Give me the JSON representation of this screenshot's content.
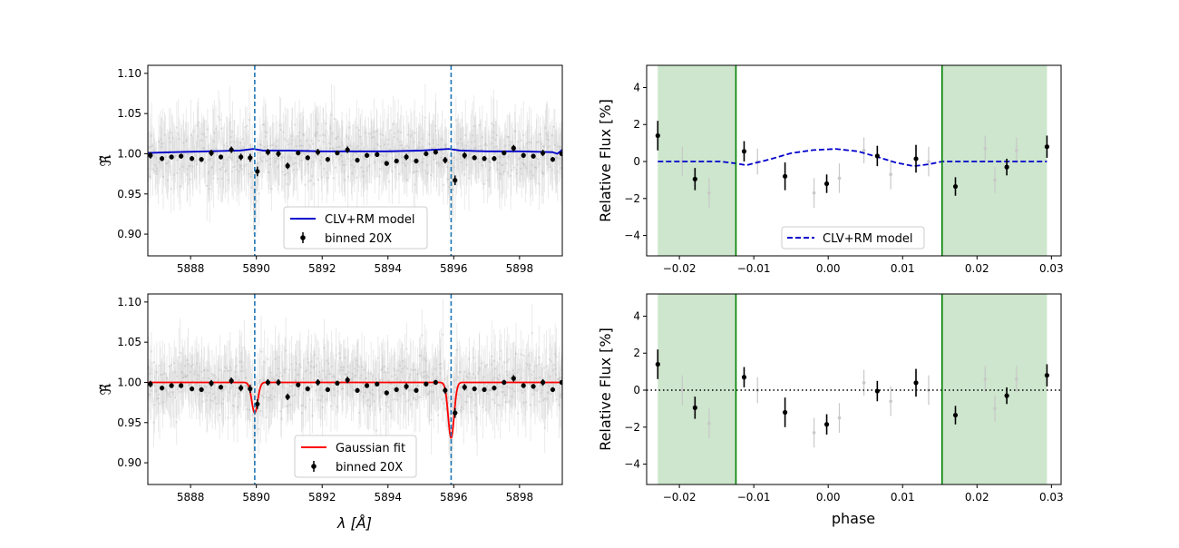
{
  "figure": {
    "background": "#ffffff"
  },
  "chart_data": [
    {
      "id": "spec_top",
      "type": "scatter",
      "x_range": [
        5886.7,
        5899.3
      ],
      "y_range": [
        0.873,
        1.11
      ],
      "xticks": [
        5888,
        5890,
        5892,
        5894,
        5896,
        5898
      ],
      "xtick_labels": [
        "5888",
        "5890",
        "5892",
        "5894",
        "5896",
        "5898"
      ],
      "yticks": [
        0.9,
        0.95,
        1.0,
        1.05,
        1.1
      ],
      "ytick_labels": [
        "0.90",
        "0.95",
        "1.00",
        "1.05",
        "1.10"
      ],
      "xlabel": "",
      "ylabel": "ℜ̃",
      "vlines": [
        5889.95,
        5895.92
      ],
      "vline_color": "#1f77b4",
      "raw_scatter_color": "#b4b4b4",
      "binned": {
        "name": "binned 20X",
        "x": [
          5886.78,
          5887.13,
          5887.42,
          5887.71,
          5888.04,
          5888.33,
          5888.63,
          5888.92,
          5889.24,
          5889.53,
          5889.81,
          5890.03,
          5890.35,
          5890.67,
          5890.95,
          5891.27,
          5891.56,
          5891.87,
          5892.17,
          5892.46,
          5892.77,
          5893.07,
          5893.36,
          5893.67,
          5893.96,
          5894.26,
          5894.56,
          5894.86,
          5895.16,
          5895.45,
          5895.74,
          5896.04,
          5896.33,
          5896.63,
          5896.93,
          5897.23,
          5897.53,
          5897.82,
          5898.12,
          5898.42,
          5898.71,
          5899.01,
          5899.28
        ],
        "y": [
          0.998,
          0.994,
          0.996,
          0.997,
          0.994,
          0.993,
          1.001,
          0.996,
          1.005,
          0.996,
          0.995,
          0.978,
          1.002,
          1.0,
          0.985,
          1.001,
          0.995,
          1.002,
          0.993,
          1.001,
          1.005,
          0.992,
          0.998,
          0.999,
          0.988,
          0.991,
          0.996,
          0.991,
          1.0,
          1.002,
          0.992,
          0.967,
          0.998,
          0.995,
          0.994,
          0.994,
          1.001,
          1.007,
          0.998,
          0.997,
          1.001,
          0.993,
          1.0
        ],
        "yerr": [
          0.004,
          0.003,
          0.003,
          0.003,
          0.003,
          0.003,
          0.004,
          0.003,
          0.004,
          0.004,
          0.005,
          0.006,
          0.004,
          0.004,
          0.004,
          0.003,
          0.003,
          0.004,
          0.003,
          0.003,
          0.004,
          0.003,
          0.003,
          0.003,
          0.003,
          0.003,
          0.004,
          0.003,
          0.003,
          0.003,
          0.004,
          0.006,
          0.004,
          0.003,
          0.003,
          0.003,
          0.003,
          0.004,
          0.003,
          0.003,
          0.004,
          0.003,
          0.003
        ]
      },
      "model": {
        "name": "CLV+RM model",
        "color": "#0000cc",
        "style": "solid",
        "x": [
          5886.7,
          5887.5,
          5888.5,
          5889.5,
          5889.9,
          5890.2,
          5891.0,
          5892.0,
          5893.0,
          5894.0,
          5895.0,
          5895.85,
          5896.2,
          5897.0,
          5898.0,
          5899.0,
          5899.15,
          5899.3
        ],
        "y": [
          1.001,
          1.002,
          1.003,
          1.004,
          1.006,
          1.004,
          1.004,
          1.003,
          1.003,
          1.003,
          1.004,
          1.006,
          1.004,
          1.003,
          1.003,
          1.002,
          1.0,
          1.005
        ]
      },
      "legend_position": "lower center"
    },
    {
      "id": "spec_bottom",
      "type": "scatter",
      "x_range": [
        5886.7,
        5899.3
      ],
      "y_range": [
        0.873,
        1.11
      ],
      "xticks": [
        5888,
        5890,
        5892,
        5894,
        5896,
        5898
      ],
      "xtick_labels": [
        "5888",
        "5890",
        "5892",
        "5894",
        "5896",
        "5898"
      ],
      "yticks": [
        0.9,
        0.95,
        1.0,
        1.05,
        1.1
      ],
      "ytick_labels": [
        "0.90",
        "0.95",
        "1.00",
        "1.05",
        "1.10"
      ],
      "xlabel": "λ [Å]",
      "ylabel": "ℜ̃",
      "vlines": [
        5889.95,
        5895.92
      ],
      "vline_color": "#1f77b4",
      "raw_scatter_color": "#b4b4b4",
      "binned": {
        "name": "binned 20X",
        "x": [
          5886.78,
          5887.13,
          5887.42,
          5887.71,
          5888.04,
          5888.33,
          5888.63,
          5888.92,
          5889.24,
          5889.53,
          5889.81,
          5890.03,
          5890.35,
          5890.67,
          5890.95,
          5891.27,
          5891.56,
          5891.87,
          5892.17,
          5892.46,
          5892.77,
          5893.07,
          5893.36,
          5893.67,
          5893.96,
          5894.26,
          5894.56,
          5894.86,
          5895.16,
          5895.45,
          5895.74,
          5896.04,
          5896.33,
          5896.63,
          5896.93,
          5897.23,
          5897.53,
          5897.82,
          5898.12,
          5898.42,
          5898.71,
          5899.01,
          5899.28
        ],
        "y": [
          0.998,
          0.993,
          0.996,
          0.996,
          0.992,
          0.991,
          0.999,
          0.994,
          1.002,
          0.993,
          0.992,
          0.973,
          1.0,
          1.0,
          0.982,
          0.997,
          0.992,
          1.0,
          0.991,
          0.999,
          1.003,
          0.99,
          0.996,
          0.998,
          0.987,
          0.991,
          0.995,
          0.99,
          0.998,
          1.0,
          0.99,
          0.962,
          0.994,
          0.992,
          0.991,
          0.993,
          1.0,
          1.005,
          0.996,
          0.995,
          1.0,
          0.991,
          1.0
        ],
        "yerr": [
          0.004,
          0.003,
          0.003,
          0.003,
          0.003,
          0.003,
          0.004,
          0.003,
          0.004,
          0.004,
          0.005,
          0.006,
          0.004,
          0.004,
          0.004,
          0.003,
          0.003,
          0.004,
          0.003,
          0.003,
          0.004,
          0.003,
          0.003,
          0.003,
          0.003,
          0.003,
          0.004,
          0.003,
          0.003,
          0.003,
          0.004,
          0.006,
          0.004,
          0.003,
          0.003,
          0.003,
          0.003,
          0.004,
          0.003,
          0.003,
          0.004,
          0.003,
          0.003
        ]
      },
      "model": {
        "name": "Gaussian fit",
        "color": "#ff0000",
        "style": "solid",
        "gaussians": [
          {
            "center": 5889.95,
            "depth": 0.038,
            "sigma": 0.09
          },
          {
            "center": 5895.92,
            "depth": 0.069,
            "sigma": 0.09
          }
        ],
        "baseline": 1.0
      },
      "legend_position": "lower center"
    },
    {
      "id": "lc_top",
      "type": "scatter",
      "x_range": [
        -0.0244,
        0.0313
      ],
      "y_range": [
        -5.1,
        5.2
      ],
      "xticks": [
        -0.02,
        -0.01,
        0.0,
        0.01,
        0.02,
        0.03
      ],
      "xtick_labels": [
        "−0.02",
        "−0.01",
        "0.00",
        "0.01",
        "0.02",
        "0.03"
      ],
      "yticks": [
        -4,
        -2,
        0,
        2,
        4
      ],
      "ytick_labels": [
        "−4",
        "−2",
        "0",
        "2",
        "4"
      ],
      "xlabel": "",
      "ylabel": "Relative Flux [%]",
      "shaded": [
        [
          -0.0229,
          -0.0124
        ],
        [
          0.0153,
          0.0294
        ]
      ],
      "shade_color": "#cde6cd",
      "vlines": [
        -0.0124,
        0.0153
      ],
      "vline_color": "#008000",
      "points": {
        "x": [
          -0.0229,
          -0.0179,
          -0.0113,
          -0.0058,
          -0.0002,
          0.0066,
          0.0118,
          0.0171,
          0.024,
          0.0294
        ],
        "y": [
          1.4,
          -0.95,
          0.55,
          -0.8,
          -1.2,
          0.3,
          0.15,
          -1.35,
          -0.3,
          0.8
        ],
        "yerr": [
          0.8,
          0.6,
          0.55,
          0.75,
          0.5,
          0.55,
          0.75,
          0.5,
          0.45,
          0.6
        ]
      },
      "faint_points": {
        "x": [
          -0.0196,
          -0.016,
          -0.0095,
          -0.0019,
          0.0015,
          0.0048,
          0.0084,
          0.0135,
          0.0211,
          0.0224,
          0.0253
        ],
        "y": [
          0.0,
          -1.7,
          0.0,
          -1.7,
          -0.9,
          0.6,
          -0.7,
          0.0,
          0.7,
          -1.0,
          0.6
        ],
        "yerr": [
          0.8,
          0.8,
          0.7,
          0.8,
          0.8,
          0.7,
          0.8,
          0.8,
          0.7,
          0.7,
          0.7
        ]
      },
      "model": {
        "name": "CLV+RM model",
        "color": "#0000cc",
        "style": "dashed",
        "x": [
          -0.0229,
          -0.0145,
          -0.0124,
          -0.011,
          -0.008,
          -0.005,
          -0.002,
          0.001,
          0.004,
          0.007,
          0.009,
          0.0115,
          0.0135,
          0.0153,
          0.0294
        ],
        "y": [
          0.0,
          0.0,
          -0.1,
          -0.2,
          0.1,
          0.45,
          0.62,
          0.68,
          0.55,
          0.2,
          -0.05,
          -0.25,
          -0.15,
          0.0,
          0.0
        ]
      },
      "legend_position": "lower center"
    },
    {
      "id": "lc_bottom",
      "type": "scatter",
      "x_range": [
        -0.0244,
        0.0313
      ],
      "y_range": [
        -5.1,
        5.2
      ],
      "xticks": [
        -0.02,
        -0.01,
        0.0,
        0.01,
        0.02,
        0.03
      ],
      "xtick_labels": [
        "−0.02",
        "−0.01",
        "0.00",
        "0.01",
        "0.02",
        "0.03"
      ],
      "yticks": [
        -4,
        -2,
        0,
        2,
        4
      ],
      "ytick_labels": [
        "−4",
        "−2",
        "0",
        "2",
        "4"
      ],
      "xlabel": "phase",
      "ylabel": "Relative Flux [%]",
      "shaded": [
        [
          -0.0229,
          -0.0124
        ],
        [
          0.0153,
          0.0294
        ]
      ],
      "shade_color": "#cde6cd",
      "vlines": [
        -0.0124,
        0.0153
      ],
      "vline_color": "#008000",
      "zero_line": {
        "y": 0,
        "style": "dotted",
        "color": "#000000"
      },
      "points": {
        "x": [
          -0.0229,
          -0.0179,
          -0.0113,
          -0.0058,
          -0.0002,
          0.0066,
          0.0118,
          0.0171,
          0.024,
          0.0294
        ],
        "y": [
          1.4,
          -0.95,
          0.7,
          -1.2,
          -1.85,
          -0.05,
          0.4,
          -1.35,
          -0.3,
          0.8
        ],
        "yerr": [
          0.8,
          0.6,
          0.55,
          0.8,
          0.55,
          0.55,
          0.75,
          0.5,
          0.45,
          0.6
        ]
      },
      "faint_points": {
        "x": [
          -0.0196,
          -0.016,
          -0.0095,
          -0.0019,
          0.0015,
          0.0048,
          0.0084,
          0.0135,
          0.0211,
          0.0224,
          0.0253
        ],
        "y": [
          0.0,
          -1.8,
          0.0,
          -2.3,
          -1.5,
          0.4,
          -0.6,
          0.0,
          0.6,
          -1.0,
          0.6
        ],
        "yerr": [
          0.8,
          0.8,
          0.7,
          0.8,
          0.8,
          0.7,
          0.8,
          0.8,
          0.7,
          0.7,
          0.7
        ]
      }
    }
  ]
}
